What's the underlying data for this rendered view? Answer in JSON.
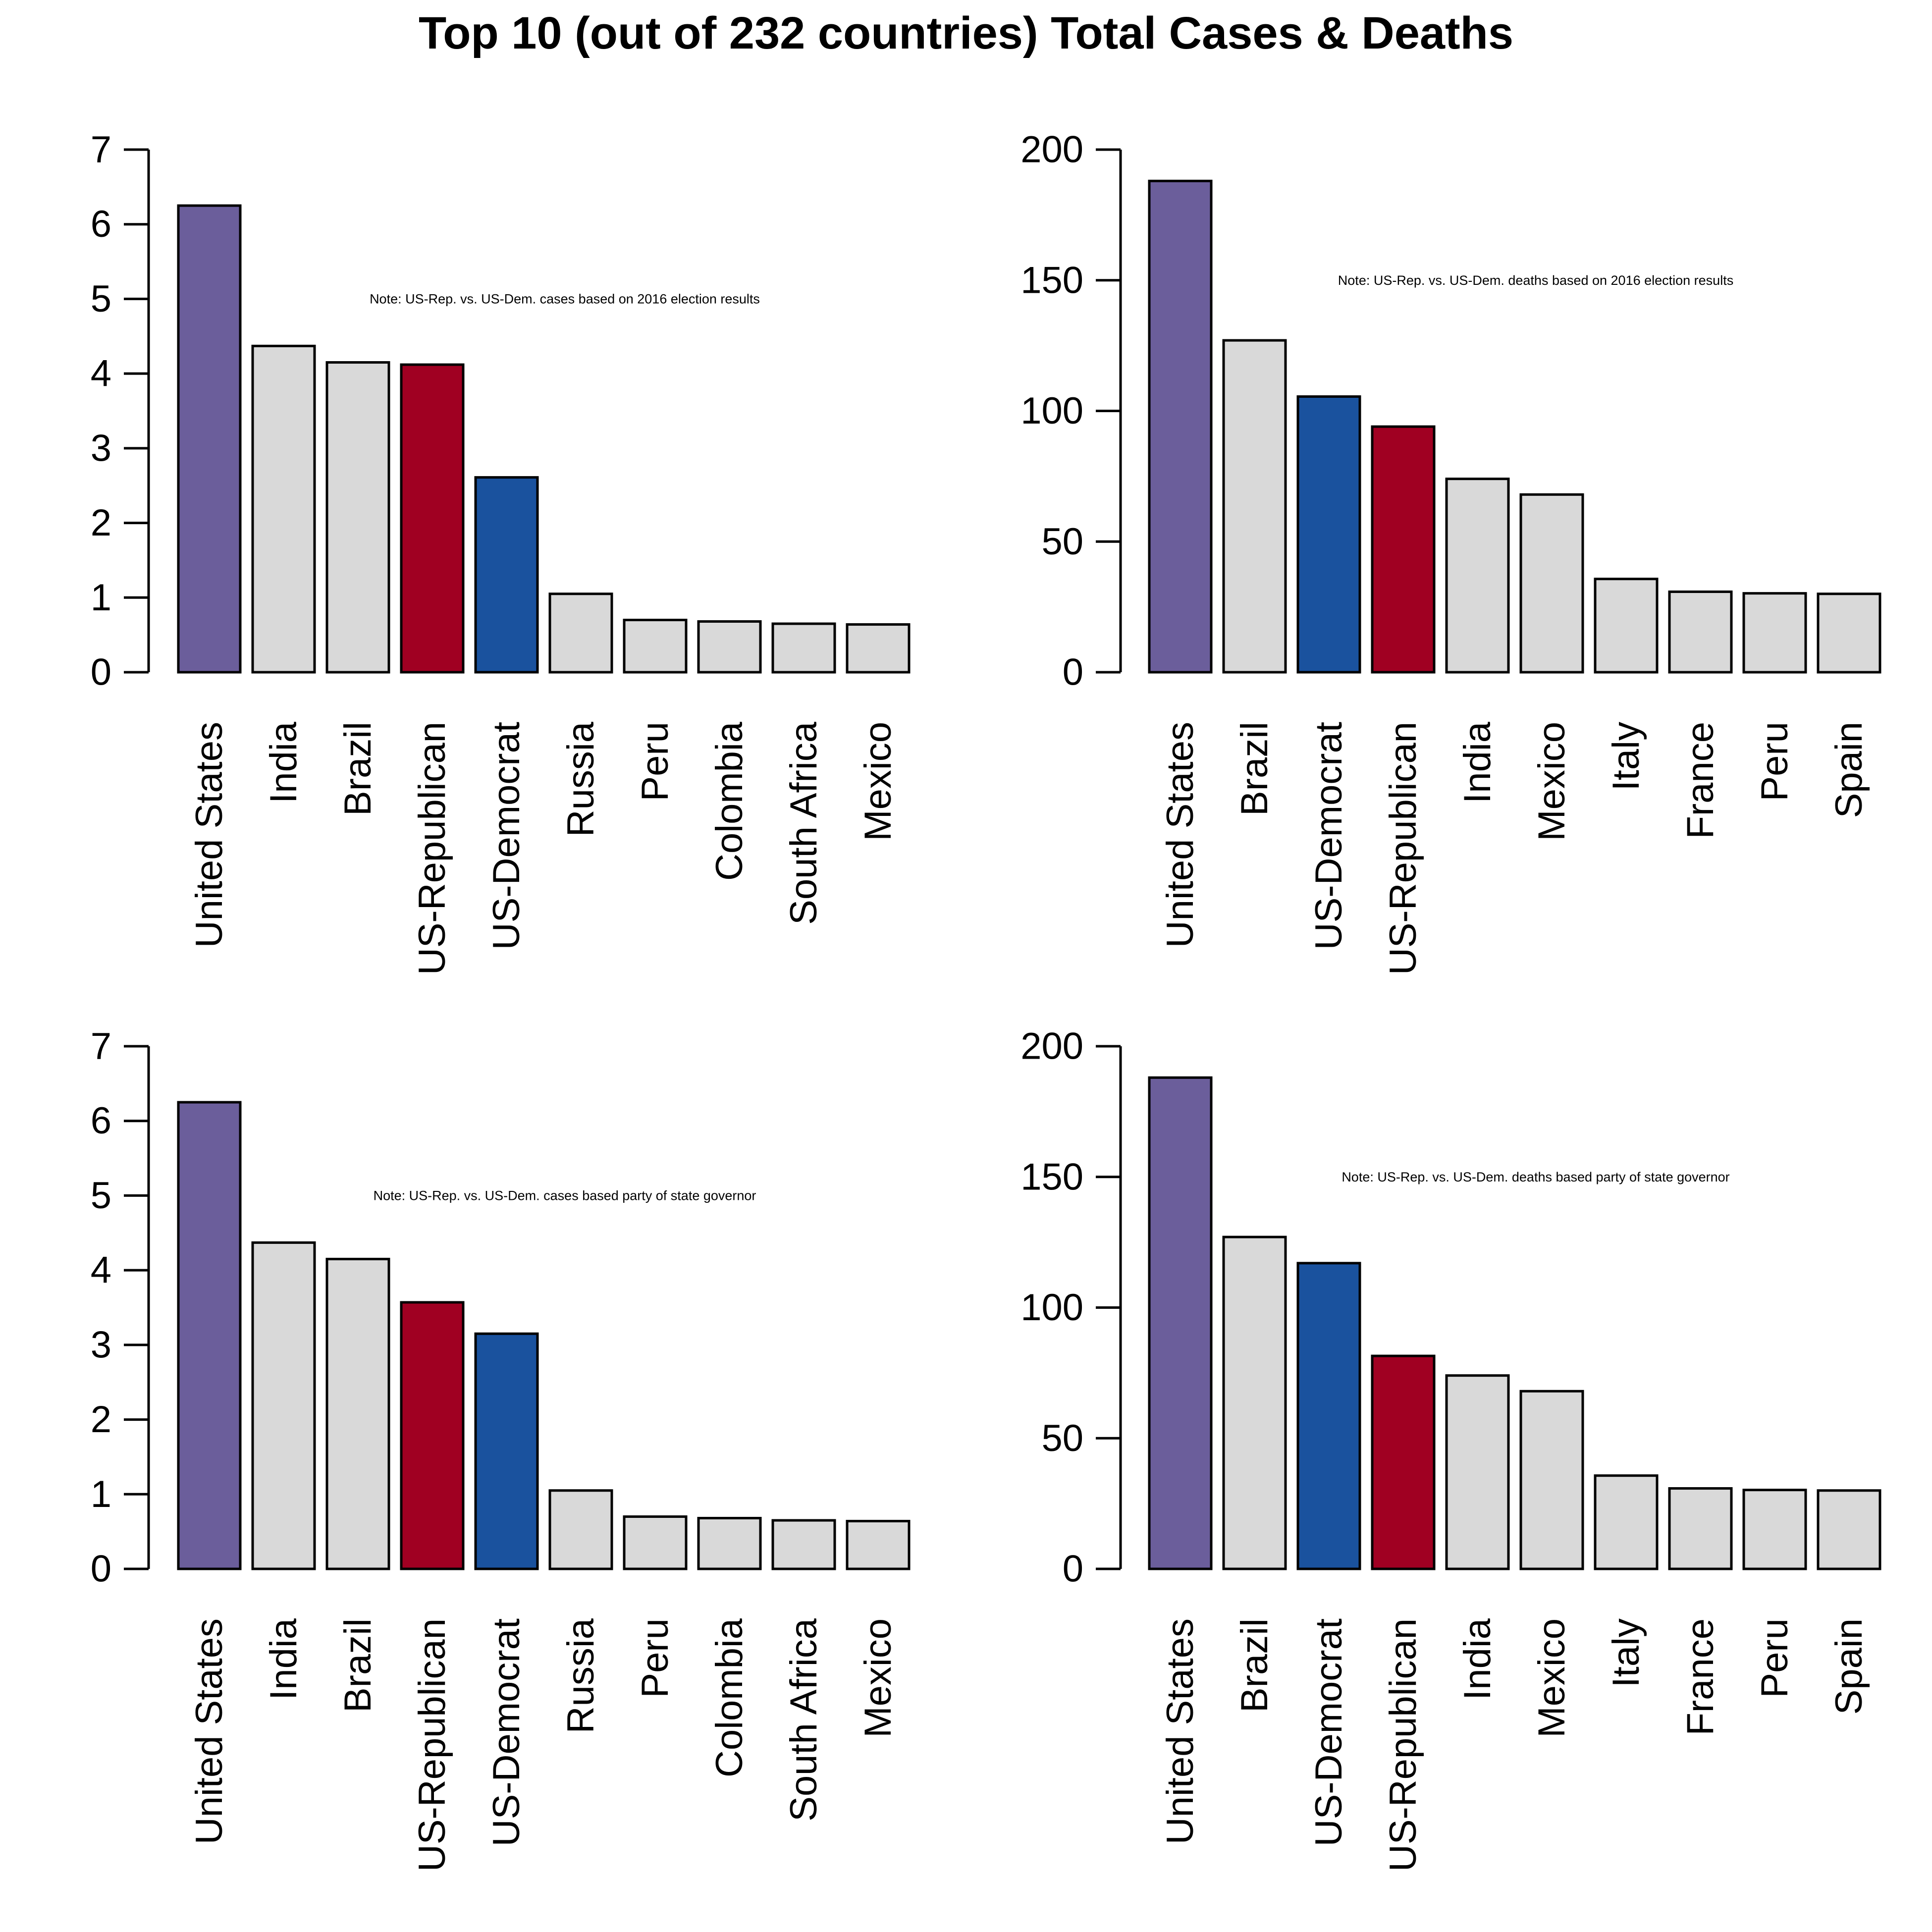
{
  "title": "Top 10 (out of 232 countries) Total Cases & Deaths",
  "colors": {
    "us_total": "#6b5e9b",
    "republican": "#a00022",
    "democrat": "#1a529e",
    "other": "#d9d9d9",
    "outline": "#000000"
  },
  "chart_data": [
    {
      "type": "bar",
      "position": "top-left",
      "title": "",
      "annotation": "Note: US-Rep. vs. US-Dem. cases based on 2016 election results",
      "categories": [
        "United States",
        "India",
        "Brazil",
        "US-Republican",
        "US-Democrat",
        "Russia",
        "Peru",
        "Colombia",
        "South Africa",
        "Mexico"
      ],
      "values": [
        6.25,
        4.37,
        4.15,
        4.12,
        2.61,
        1.05,
        0.7,
        0.68,
        0.65,
        0.64
      ],
      "bar_colors": [
        "us_total",
        "other",
        "other",
        "republican",
        "democrat",
        "other",
        "other",
        "other",
        "other",
        "other"
      ],
      "ylim": [
        0,
        7
      ],
      "yticks": [
        0,
        1,
        2,
        3,
        4,
        5,
        6,
        7
      ],
      "grid": false
    },
    {
      "type": "bar",
      "position": "top-right",
      "title": "",
      "annotation": "Note: US-Rep. vs. US-Dem. deaths based on 2016 election results",
      "categories": [
        "United States",
        "Brazil",
        "US-Democrat",
        "US-Republican",
        "India",
        "Mexico",
        "Italy",
        "France",
        "Peru",
        "Spain"
      ],
      "values": [
        188,
        127,
        105.5,
        94,
        74,
        68,
        35.7,
        30.8,
        30.2,
        30
      ],
      "bar_colors": [
        "us_total",
        "other",
        "democrat",
        "republican",
        "other",
        "other",
        "other",
        "other",
        "other",
        "other"
      ],
      "ylim": [
        0,
        200
      ],
      "yticks": [
        0,
        50,
        100,
        150,
        200
      ],
      "grid": false
    },
    {
      "type": "bar",
      "position": "bottom-left",
      "title": "",
      "annotation": "Note: US-Rep. vs. US-Dem. cases based party of state governor",
      "categories": [
        "United States",
        "India",
        "Brazil",
        "US-Republican",
        "US-Democrat",
        "Russia",
        "Peru",
        "Colombia",
        "South Africa",
        "Mexico"
      ],
      "values": [
        6.25,
        4.37,
        4.15,
        3.57,
        3.15,
        1.05,
        0.7,
        0.68,
        0.65,
        0.64
      ],
      "bar_colors": [
        "us_total",
        "other",
        "other",
        "republican",
        "democrat",
        "other",
        "other",
        "other",
        "other",
        "other"
      ],
      "ylim": [
        0,
        7
      ],
      "yticks": [
        0,
        1,
        2,
        3,
        4,
        5,
        6,
        7
      ],
      "grid": false
    },
    {
      "type": "bar",
      "position": "bottom-right",
      "title": "",
      "annotation": "Note: US-Rep. vs. US-Dem. deaths based party of state governor",
      "categories": [
        "United States",
        "Brazil",
        "US-Democrat",
        "US-Republican",
        "India",
        "Mexico",
        "Italy",
        "France",
        "Peru",
        "Spain"
      ],
      "values": [
        188,
        127,
        117,
        81.5,
        74,
        68,
        35.7,
        30.8,
        30.2,
        30
      ],
      "bar_colors": [
        "us_total",
        "other",
        "democrat",
        "republican",
        "other",
        "other",
        "other",
        "other",
        "other",
        "other"
      ],
      "ylim": [
        0,
        200
      ],
      "yticks": [
        0,
        50,
        100,
        150,
        200
      ],
      "grid": false
    }
  ]
}
